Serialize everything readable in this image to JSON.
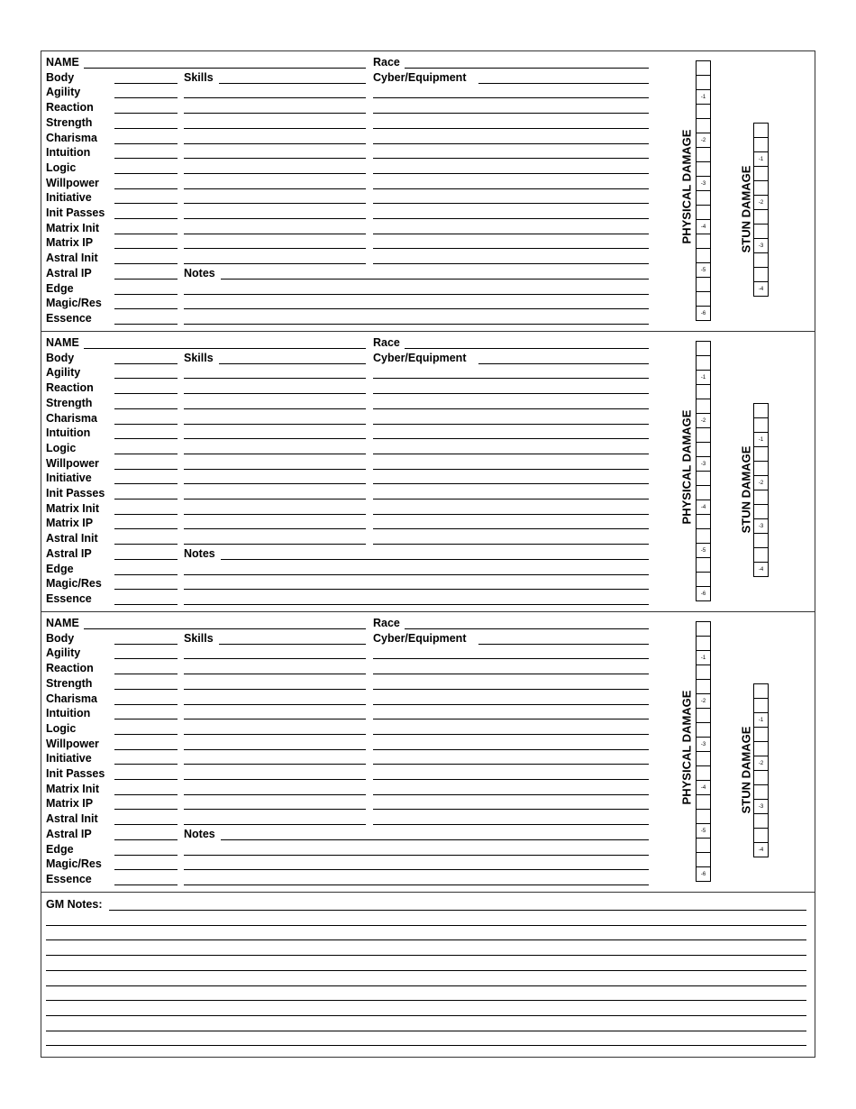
{
  "character_blocks_count": 3,
  "block": {
    "name_label": "NAME",
    "race_label": "Race",
    "skills_label": "Skills",
    "cyber_label": "Cyber/Equipment",
    "notes_label": "Notes",
    "attributes": [
      "Body",
      "Agility",
      "Reaction",
      "Strength",
      "Charisma",
      "Intuition",
      "Logic",
      "Willpower",
      "Initiative",
      "Init Passes",
      "Matrix Init",
      "Matrix IP",
      "Astral Init",
      "Astral IP",
      "Edge",
      "Magic/Res",
      "Essence"
    ],
    "physical_damage_label": "PHYSICAL DAMAGE",
    "stun_damage_label": "STUN DAMAGE",
    "physical_boxes": [
      "",
      "",
      "-1",
      "",
      "",
      "-2",
      "",
      "",
      "-3",
      "",
      "",
      "-4",
      "",
      "",
      "-5",
      "",
      "",
      "-6"
    ],
    "stun_boxes": [
      "",
      "",
      "-1",
      "",
      "",
      "-2",
      "",
      "",
      "-3",
      "",
      "",
      "-4"
    ]
  },
  "gm_notes": {
    "label": "GM Notes:",
    "extra_lines": 9
  }
}
